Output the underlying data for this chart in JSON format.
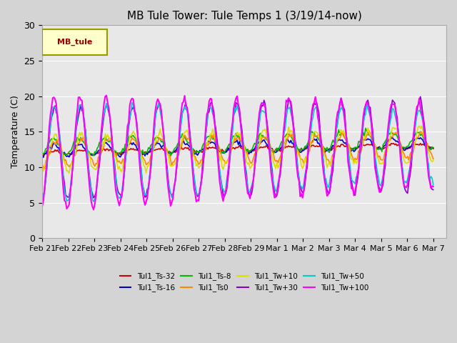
{
  "title": "MB Tule Tower: Tule Temps 1 (3/19/14-now)",
  "ylabel": "Temperature (C)",
  "xlabel": "",
  "ylim": [
    0,
    30
  ],
  "background_color": "#e8e8e8",
  "series": [
    {
      "label": "Tul1_Ts-32",
      "color": "#cc0000",
      "lw": 1.2
    },
    {
      "label": "Tul1_Ts-16",
      "color": "#0000cc",
      "lw": 1.2
    },
    {
      "label": "Tul1_Ts-8",
      "color": "#00bb00",
      "lw": 1.2
    },
    {
      "label": "Tul1_Ts0",
      "color": "#ff8800",
      "lw": 1.2
    },
    {
      "label": "Tul1_Tw+10",
      "color": "#dddd00",
      "lw": 1.2
    },
    {
      "label": "Tul1_Tw+30",
      "color": "#8800cc",
      "lw": 1.2
    },
    {
      "label": "Tul1_Tw+50",
      "color": "#00cccc",
      "lw": 1.2
    },
    {
      "label": "Tul1_Tw+100",
      "color": "#ff00ff",
      "lw": 1.5
    }
  ],
  "xtick_positions": [
    0,
    1,
    2,
    3,
    4,
    5,
    6,
    7,
    8,
    9,
    10,
    11,
    12,
    13,
    14,
    15
  ],
  "xtick_labels": [
    "Feb 21",
    "Feb 22",
    "Feb 23",
    "Feb 24",
    "Feb 25",
    "Feb 26",
    "Feb 27",
    "Feb 28",
    "Feb 29",
    "Mar 1",
    "Mar 2",
    "Mar 3",
    "Mar 4",
    "Mar 5",
    "Mar 6",
    "Mar 7"
  ],
  "ytick_labels": [
    0,
    5,
    10,
    15,
    20,
    25,
    30
  ],
  "legend_box_color": "#ffffcc",
  "legend_box_edge": "#999900",
  "legend_title": "MB_tule",
  "legend_title_color": "#990000",
  "n_points": 336
}
